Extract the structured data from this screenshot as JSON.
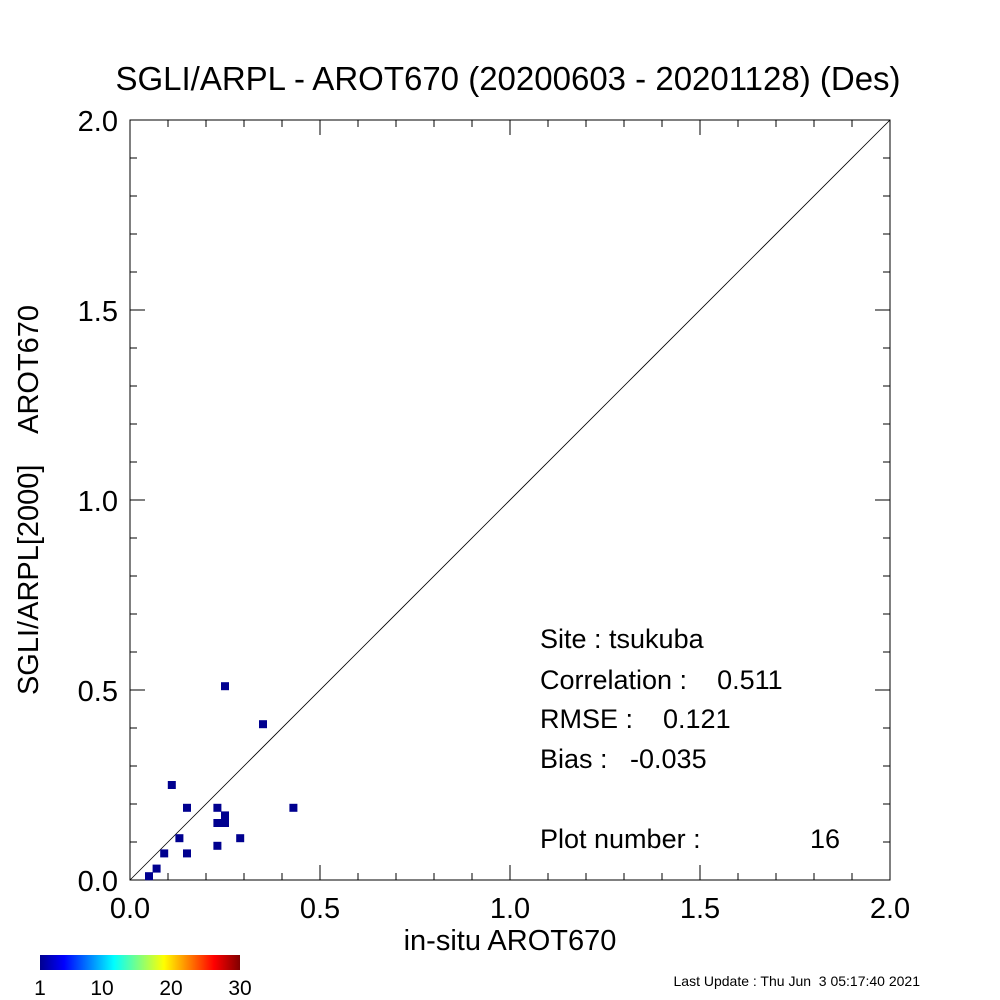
{
  "chart_data": {
    "type": "scatter",
    "title": "SGLI/ARPL - AROT670 (20200603 - 20201128) (Des)",
    "xlabel": "in-situ AROT670",
    "ylabel": "SGLI/ARPL[2000]    AROT670",
    "xlim": [
      0.0,
      2.0
    ],
    "ylim": [
      0.0,
      2.0
    ],
    "xticks": [
      "0.0",
      "0.5",
      "1.0",
      "1.5",
      "2.0"
    ],
    "yticks": [
      "0.0",
      "0.5",
      "1.0",
      "1.5",
      "2.0"
    ],
    "one_to_one_line": true,
    "grid": false,
    "marker_color": "#00008f",
    "points": [
      {
        "x": 0.05,
        "y": 0.01
      },
      {
        "x": 0.07,
        "y": 0.03
      },
      {
        "x": 0.09,
        "y": 0.07
      },
      {
        "x": 0.11,
        "y": 0.25
      },
      {
        "x": 0.13,
        "y": 0.11
      },
      {
        "x": 0.15,
        "y": 0.07
      },
      {
        "x": 0.15,
        "y": 0.19
      },
      {
        "x": 0.23,
        "y": 0.09
      },
      {
        "x": 0.23,
        "y": 0.15
      },
      {
        "x": 0.23,
        "y": 0.19
      },
      {
        "x": 0.25,
        "y": 0.15
      },
      {
        "x": 0.25,
        "y": 0.17
      },
      {
        "x": 0.25,
        "y": 0.51
      },
      {
        "x": 0.29,
        "y": 0.11
      },
      {
        "x": 0.35,
        "y": 0.41
      },
      {
        "x": 0.43,
        "y": 0.19
      }
    ],
    "stats": {
      "site": "Site : tsukuba",
      "correlation": "Correlation :    0.511",
      "rmse": "RMSE :    0.121",
      "bias": "Bias :   -0.035",
      "plot_number": "Plot number :",
      "plot_number_value": "16"
    },
    "colorbar": {
      "ticks": [
        "1",
        "10",
        "20",
        "30"
      ],
      "range": [
        1,
        30
      ],
      "colormap": "jet"
    },
    "last_update": "Last Update : Thu Jun  3 05:17:40 2021"
  }
}
